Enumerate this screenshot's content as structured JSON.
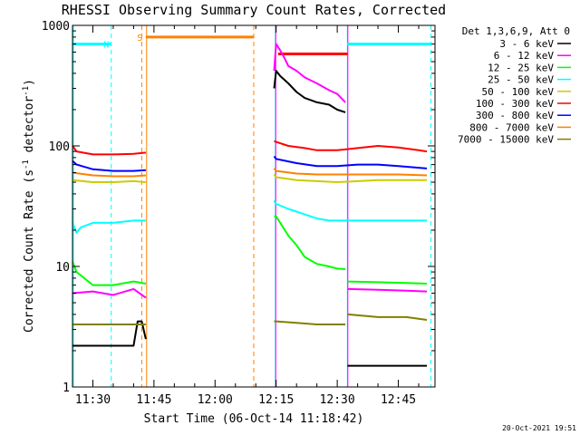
{
  "chart_data": {
    "type": "line",
    "title": "RHESSI Observing Summary Count Rates, Corrected",
    "xlabel": "Start Time (06-Oct-14 11:18:42)",
    "ylabel": "Corrected Count Rate (s^-1 detector^-1)",
    "ylabel_parts": {
      "main": "Corrected Count Rate (s",
      "sup1": "-1",
      "mid": " detector",
      "sup2": "-1",
      "end": ")"
    },
    "yscale": "log",
    "x_start_minutes": 685.0,
    "xlim_minutes": [
      685.0,
      774.0
    ],
    "ylim": [
      1,
      1000
    ],
    "x_ticks": [
      {
        "minute": 690,
        "label": "11:30"
      },
      {
        "minute": 705,
        "label": "11:45"
      },
      {
        "minute": 720,
        "label": "12:00"
      },
      {
        "minute": 735,
        "label": "12:15"
      },
      {
        "minute": 750,
        "label": "12:30"
      },
      {
        "minute": 765,
        "label": "12:45"
      }
    ],
    "y_ticks": [
      {
        "value": 1,
        "label": "1"
      },
      {
        "value": 10,
        "label": "10"
      },
      {
        "value": 100,
        "label": "100"
      },
      {
        "value": 1000,
        "label": "1000"
      }
    ],
    "legend": {
      "header": "Det 1,3,6,9, Att 0",
      "placement": "right"
    },
    "series": [
      {
        "name": "3 - 6 keV",
        "color": "#000000",
        "segments": [
          {
            "x": [
              685,
              700,
              701,
              702,
              703
            ],
            "y": [
              2.2,
              2.2,
              3.5,
              3.5,
              2.5
            ]
          },
          {
            "x": [
              734.5,
              735,
              736,
              738,
              740,
              742,
              745,
              748,
              750,
              752
            ],
            "y": [
              300,
              420,
              380,
              330,
              280,
              250,
              230,
              220,
              200,
              190
            ]
          },
          {
            "x": [
              752.5,
              760,
              767,
              772
            ],
            "y": [
              1.5,
              1.5,
              1.5,
              1.5
            ]
          }
        ]
      },
      {
        "name": "6 - 12 keV",
        "color": "#ff00ff",
        "segments": [
          {
            "x": [
              685,
              690,
              695,
              700,
              703
            ],
            "y": [
              6,
              6.2,
              5.8,
              6.5,
              5.5
            ]
          },
          {
            "x": [
              734.5,
              735,
              736,
              737,
              738,
              740,
              742,
              745,
              748,
              750,
              752
            ],
            "y": [
              420,
              700,
              620,
              540,
              460,
              420,
              370,
              330,
              290,
              270,
              230
            ]
          },
          {
            "x": [
              752.5,
              760,
              767,
              772
            ],
            "y": [
              6.5,
              6.4,
              6.3,
              6.2
            ]
          }
        ]
      },
      {
        "name": "12 - 25 keV",
        "color": "#00ff00",
        "segments": [
          {
            "x": [
              685,
              686,
              690,
              695,
              700,
              703
            ],
            "y": [
              11,
              9,
              7,
              7,
              7.5,
              7.2
            ]
          },
          {
            "x": [
              734.5,
              735,
              738,
              740,
              742,
              745,
              748,
              750,
              752
            ],
            "y": [
              26,
              26,
              18,
              15,
              12,
              10.5,
              10,
              9.6,
              9.5
            ]
          },
          {
            "x": [
              752.5,
              760,
              767,
              772
            ],
            "y": [
              7.5,
              7.4,
              7.3,
              7.2
            ]
          }
        ]
      },
      {
        "name": "25 - 50 keV",
        "color": "#00ffff",
        "segments": [
          {
            "x": [
              685,
              686,
              687,
              690,
              695,
              700,
              703
            ],
            "y": [
              23,
              19,
              21,
              23,
              23,
              24,
              24
            ]
          },
          {
            "x": [
              734.5,
              735,
              738,
              742,
              745,
              748,
              750,
              752,
              760,
              767,
              772
            ],
            "y": [
              35,
              33,
              30,
              27,
              25,
              24,
              24,
              24,
              24,
              24,
              24
            ]
          }
        ]
      },
      {
        "name": "50 - 100 keV",
        "color": "#cccc00",
        "segments": [
          {
            "x": [
              685,
              690,
              695,
              700,
              703
            ],
            "y": [
              52,
              50,
              50,
              51,
              50
            ]
          },
          {
            "x": [
              734.5,
              735,
              740,
              745,
              750,
              755,
              760,
              765,
              772
            ],
            "y": [
              58,
              55,
              52,
              51,
              50,
              51,
              52,
              52,
              52
            ]
          }
        ]
      },
      {
        "name": "100 - 300 keV",
        "color": "#ff0000",
        "segments": [
          {
            "x": [
              685,
              686,
              690,
              695,
              700,
              703
            ],
            "y": [
              100,
              90,
              85,
              85,
              86,
              88
            ]
          },
          {
            "x": [
              734.5,
              735,
              738,
              742,
              745,
              750,
              755,
              760,
              765,
              770,
              772
            ],
            "y": [
              110,
              108,
              100,
              96,
              92,
              92,
              96,
              100,
              97,
              92,
              90
            ]
          }
        ]
      },
      {
        "name": "300 - 800 keV",
        "color": "#0000ff",
        "segments": [
          {
            "x": [
              685,
              686,
              690,
              695,
              700,
              703
            ],
            "y": [
              75,
              70,
              64,
              62,
              62,
              63
            ]
          },
          {
            "x": [
              734.5,
              735,
              740,
              745,
              750,
              755,
              760,
              765,
              772
            ],
            "y": [
              82,
              78,
              72,
              68,
              68,
              70,
              70,
              68,
              65
            ]
          }
        ]
      },
      {
        "name": "800 - 7000 keV",
        "color": "#ff8000",
        "segments": [
          {
            "x": [
              685,
              690,
              695,
              700,
              703
            ],
            "y": [
              60,
              57,
              56,
              56,
              57
            ]
          },
          {
            "x": [
              734.5,
              735,
              740,
              745,
              750,
              755,
              760,
              765,
              772
            ],
            "y": [
              65,
              62,
              59,
              58,
              58,
              58,
              58,
              58,
              57
            ]
          }
        ]
      },
      {
        "name": "7000 - 15000 keV",
        "color": "#808000",
        "segments": [
          {
            "x": [
              685,
              690,
              695,
              700,
              703
            ],
            "y": [
              3.3,
              3.3,
              3.3,
              3.3,
              3.3
            ]
          },
          {
            "x": [
              734.5,
              735,
              740,
              745,
              750,
              752
            ],
            "y": [
              3.5,
              3.5,
              3.4,
              3.3,
              3.3,
              3.3
            ]
          },
          {
            "x": [
              752.5,
              760,
              767,
              772
            ],
            "y": [
              4,
              3.8,
              3.8,
              3.6
            ]
          }
        ]
      }
    ],
    "flags": [
      {
        "name": "night",
        "label": "N",
        "color": "#00ffff",
        "y": 700,
        "spans": [
          [
            685,
            694.5
          ],
          [
            752.5,
            773
          ]
        ],
        "label_at": 694
      },
      {
        "name": "saa",
        "label": "S",
        "color": "#ff8000",
        "y": 800,
        "spans": [
          [
            703,
            729.5
          ]
        ],
        "label_at": 702.2
      },
      {
        "name": "flare",
        "color": "#ff0000",
        "y": 580,
        "spans": [
          [
            735.5,
            752.5
          ]
        ]
      }
    ],
    "vertical_markers": [
      {
        "x": 685.2,
        "color": "#00ffff",
        "style": "solid"
      },
      {
        "x": 694.5,
        "color": "#00ffff",
        "style": "dashed"
      },
      {
        "x": 702.0,
        "color": "#ff8000",
        "style": "dashed"
      },
      {
        "x": 703.2,
        "color": "#ff8000",
        "style": "solid"
      },
      {
        "x": 729.5,
        "color": "#ff8000",
        "style": "dashed"
      },
      {
        "x": 734.8,
        "color": "#00ffff",
        "style": "solid"
      },
      {
        "x": 734.9,
        "color": "#ff00ff",
        "style": "solid"
      },
      {
        "x": 752.5,
        "color": "#00ffff",
        "style": "solid"
      },
      {
        "x": 752.6,
        "color": "#ff00ff",
        "style": "solid"
      },
      {
        "x": 773.0,
        "color": "#00ffff",
        "style": "dashed"
      }
    ]
  },
  "footer": {
    "timestamp": "20-Oct-2021 19:51"
  }
}
